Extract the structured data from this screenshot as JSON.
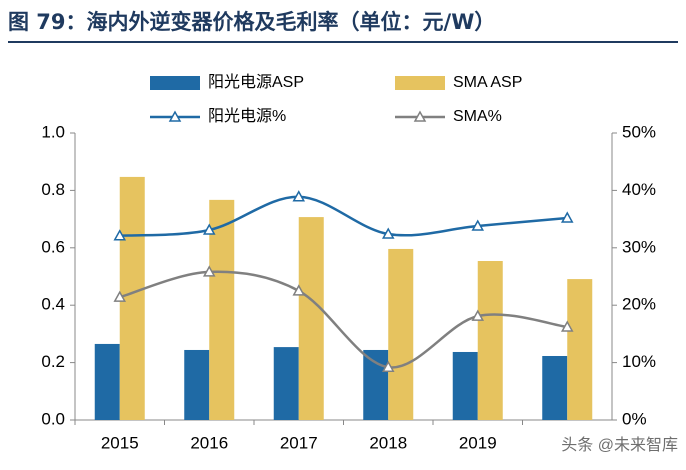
{
  "chart_data": {
    "type": "bar",
    "title": "图 79：海内外逆变器价格及毛利率（单位：元/W）",
    "categories": [
      "2015",
      "2016",
      "2017",
      "2018",
      "2019",
      null
    ],
    "series": [
      {
        "name": "阳光电源ASP",
        "type": "bar",
        "color": "#1f6aa5",
        "values": [
          0.265,
          0.244,
          0.254,
          0.244,
          0.237,
          0.223
        ]
      },
      {
        "name": "SMA ASP",
        "type": "bar",
        "color": "#e6c35f",
        "values": [
          0.847,
          0.767,
          0.707,
          0.596,
          0.554,
          0.491
        ]
      },
      {
        "name": "阳光电源%",
        "type": "line",
        "axis": "y2",
        "color": "#1f6aa5",
        "values": [
          32.1,
          33.1,
          38.9,
          32.4,
          33.8,
          35.2
        ]
      },
      {
        "name": "SMA%",
        "type": "line",
        "axis": "y2",
        "color": "#808080",
        "values": [
          21.4,
          25.8,
          22.5,
          9.2,
          18.1,
          16.2
        ]
      }
    ],
    "ylim": [
      0,
      1
    ],
    "yticks": [
      {
        "value": 0,
        "label": "0.0"
      },
      0.2,
      0.4,
      0.6,
      0.8,
      {
        "value": 1,
        "label": "1.0"
      }
    ],
    "y2lim": [
      0,
      50
    ],
    "y2ticks": [
      {
        "value": 0,
        "label": "0%"
      },
      {
        "value": 10,
        "label": "10%"
      },
      {
        "value": 20,
        "label": "20%"
      },
      {
        "value": 30,
        "label": "30%"
      },
      {
        "value": 40,
        "label": "40%"
      },
      {
        "value": 50,
        "label": "50%"
      }
    ],
    "watermark": "头条 @未来智库"
  }
}
